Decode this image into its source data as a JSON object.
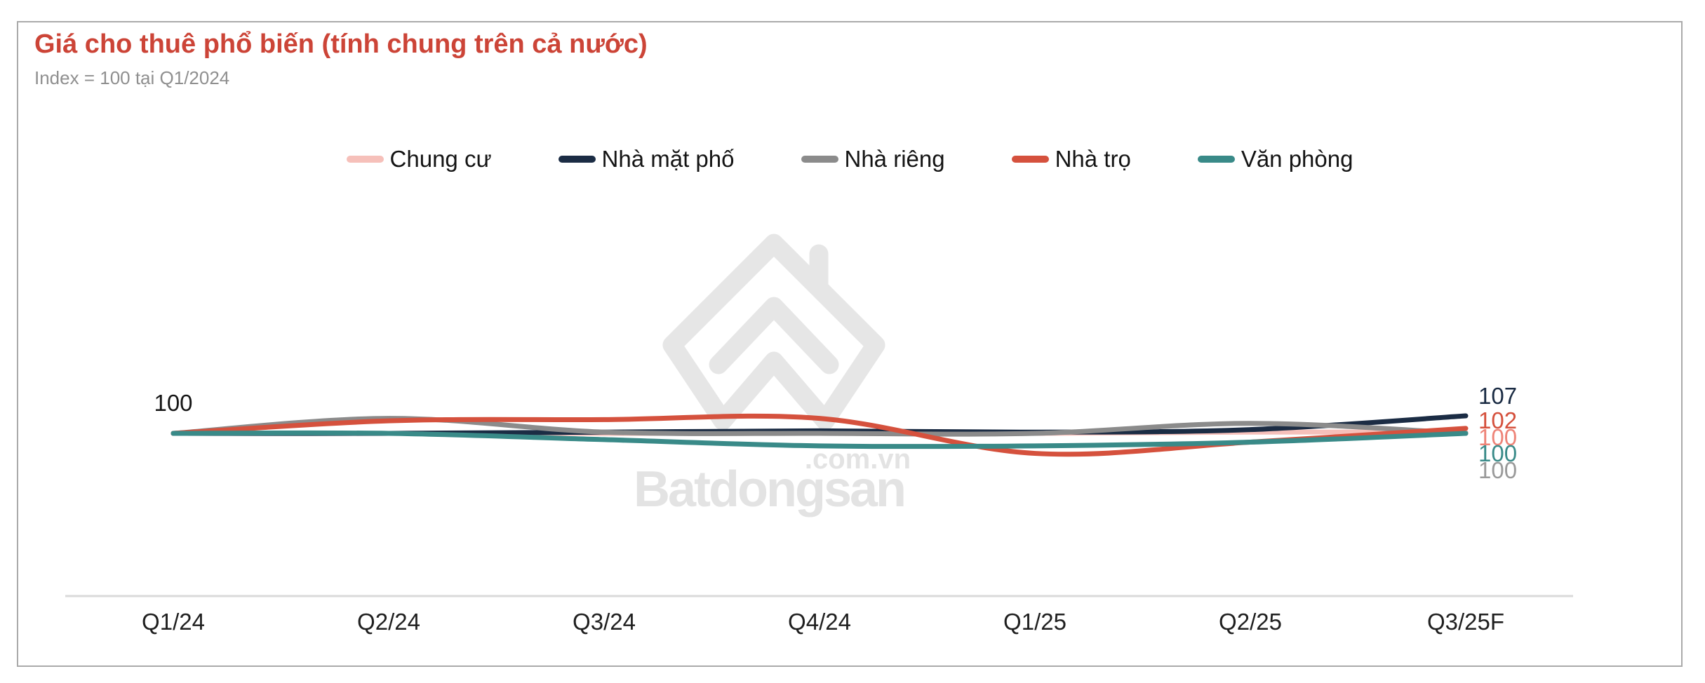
{
  "card": {
    "title": "Giá cho thuê phổ biến (tính chung trên cả nước)",
    "subtitle": "Index = 100 tại Q1/2024"
  },
  "watermark": {
    "brand": "Batdongsan",
    "domain_suffix": ".com.vn"
  },
  "chart_data": {
    "type": "line",
    "title": "Giá cho thuê phổ biến (tính chung trên cả nước)",
    "subtitle": "Index = 100 tại Q1/2024",
    "smooth": true,
    "grid": false,
    "legend_position": "top",
    "y_axis": {
      "visible": false,
      "baseline_value": 100
    },
    "x_axis": {
      "line": true
    },
    "start_annotation": "100",
    "categories": [
      "Q1/24",
      "Q2/24",
      "Q3/24",
      "Q4/24",
      "Q1/25",
      "Q2/25",
      "Q3/25F"
    ],
    "series": [
      {
        "name": "Chung cư",
        "color": "#f6c0ba",
        "label_color": "#ee8478",
        "values": [
          100,
          100,
          100,
          100,
          100,
          100.5,
          100.5
        ],
        "end_label": "100"
      },
      {
        "name": "Nhà mặt phố",
        "color": "#1b2c44",
        "label_color": "#1b2c44",
        "values": [
          100,
          100,
          100.5,
          101,
          100.5,
          101.5,
          107
        ],
        "end_label": "107"
      },
      {
        "name": "Nhà riêng",
        "color": "#8b8b8b",
        "label_color": "#9a9a9a",
        "values": [
          100,
          106,
          100.5,
          100,
          100,
          104,
          100
        ],
        "end_label": "100"
      },
      {
        "name": "Nhà trọ",
        "color": "#d5513d",
        "label_color": "#d5513d",
        "values": [
          100,
          105,
          105.5,
          106,
          92,
          96.5,
          102
        ],
        "end_label": "102"
      },
      {
        "name": "Văn phòng",
        "color": "#398a88",
        "label_color": "#3a8b89",
        "values": [
          100,
          100,
          97.5,
          95,
          95,
          96.5,
          100
        ],
        "end_label": "100"
      }
    ]
  }
}
